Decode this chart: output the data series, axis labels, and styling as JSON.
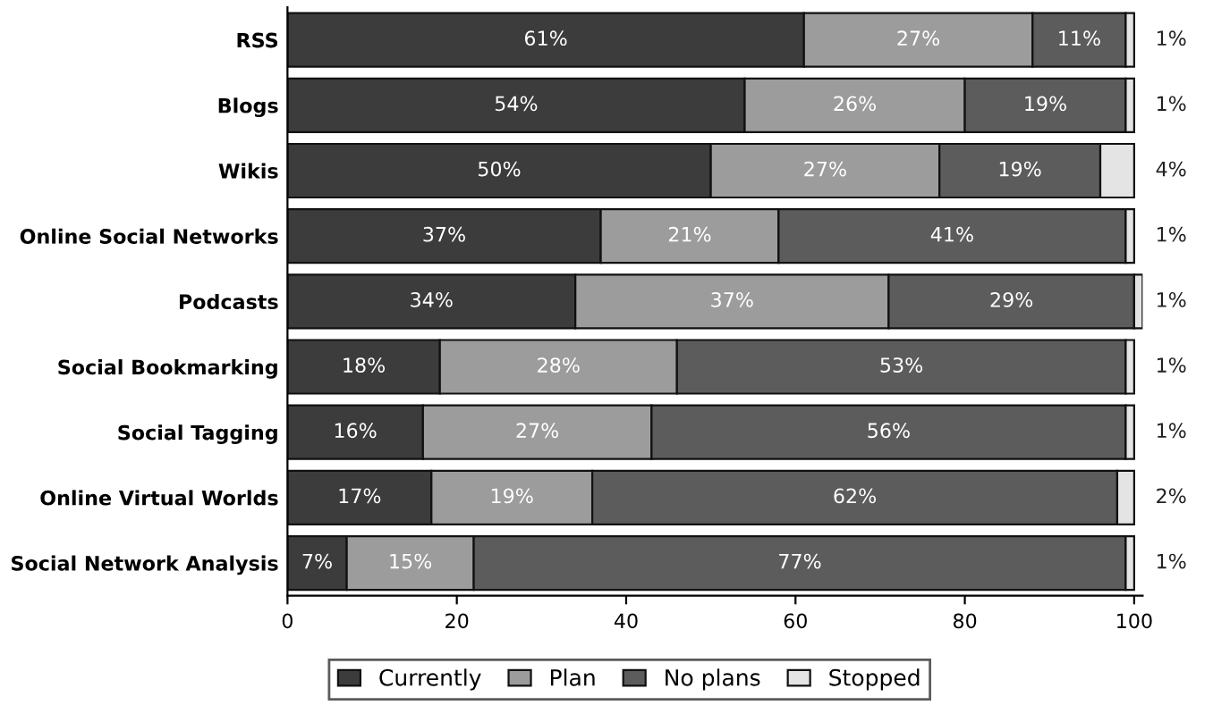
{
  "chart_data": {
    "type": "bar",
    "orientation": "horizontal",
    "stacked": true,
    "categories": [
      "RSS",
      "Blogs",
      "Wikis",
      "Online Social Networks",
      "Podcasts",
      "Social Bookmarking",
      "Social Tagging",
      "Online Virtual Worlds",
      "Social Network Analysis"
    ],
    "series": [
      {
        "name": "Currently",
        "color": "#3c3c3c",
        "values": [
          61,
          54,
          50,
          37,
          34,
          18,
          16,
          17,
          7
        ],
        "value_labels": [
          "61%",
          "54%",
          "50%",
          "37%",
          "34%",
          "18%",
          "16%",
          "17%",
          "7%"
        ]
      },
      {
        "name": "Plan",
        "color": "#9c9c9c",
        "values": [
          27,
          26,
          27,
          21,
          37,
          28,
          27,
          19,
          15
        ],
        "value_labels": [
          "27%",
          "26%",
          "27%",
          "21%",
          "37%",
          "28%",
          "27%",
          "19%",
          "15%"
        ]
      },
      {
        "name": "No plans",
        "color": "#5c5c5c",
        "values": [
          11,
          19,
          19,
          41,
          29,
          53,
          56,
          62,
          77
        ],
        "value_labels": [
          "11%",
          "19%",
          "19%",
          "41%",
          "29%",
          "53%",
          "56%",
          "62%",
          "77%"
        ]
      },
      {
        "name": "Stopped",
        "color": "#e4e4e4",
        "values": [
          1,
          1,
          4,
          1,
          1,
          1,
          1,
          2,
          1
        ],
        "value_labels": [
          "1%",
          "1%",
          "4%",
          "1%",
          "1%",
          "1%",
          "1%",
          "2%",
          "1%"
        ]
      }
    ],
    "xlim": [
      0,
      101
    ],
    "xticks": [
      0,
      20,
      40,
      60,
      80,
      100
    ],
    "grid": false,
    "legend": "bottom"
  }
}
